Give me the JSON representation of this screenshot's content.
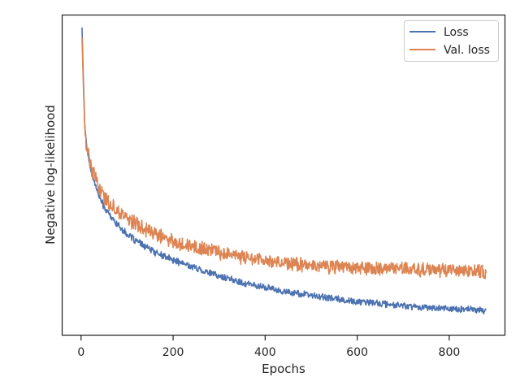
{
  "chart_data": {
    "type": "line",
    "xlabel": "Epochs",
    "ylabel": "Negative log-likelihood",
    "xlim": [
      -42,
      922
    ],
    "ylim": [
      0,
      100
    ],
    "x_ticks": [
      0,
      200,
      400,
      600,
      800
    ],
    "y_ticks_labeled": false,
    "grid": false,
    "legend": {
      "placement": "top-right",
      "entries": [
        "Loss",
        "Val. loss"
      ]
    },
    "series": [
      {
        "name": "Loss",
        "color": "#4c72b0",
        "points": [
          [
            2,
            96
          ],
          [
            5,
            80
          ],
          [
            8,
            66
          ],
          [
            12,
            59
          ],
          [
            18,
            54
          ],
          [
            25,
            50
          ],
          [
            35,
            45
          ],
          [
            50,
            40
          ],
          [
            70,
            36
          ],
          [
            100,
            31.5
          ],
          [
            130,
            28.5
          ],
          [
            160,
            26
          ],
          [
            200,
            23.5
          ],
          [
            250,
            21
          ],
          [
            300,
            18.5
          ],
          [
            350,
            16.5
          ],
          [
            400,
            15
          ],
          [
            450,
            13.5
          ],
          [
            500,
            12.5
          ],
          [
            550,
            11.5
          ],
          [
            600,
            10.5
          ],
          [
            650,
            10
          ],
          [
            700,
            9.3
          ],
          [
            750,
            8.8
          ],
          [
            800,
            8.4
          ],
          [
            850,
            8
          ],
          [
            880,
            7.8
          ]
        ],
        "noise": 1.2
      },
      {
        "name": "Val. loss",
        "color": "#dd8452",
        "points": [
          [
            2,
            93
          ],
          [
            5,
            78
          ],
          [
            8,
            65
          ],
          [
            12,
            59
          ],
          [
            18,
            55
          ],
          [
            25,
            51
          ],
          [
            35,
            47.5
          ],
          [
            50,
            43
          ],
          [
            70,
            40
          ],
          [
            100,
            36.5
          ],
          [
            130,
            34
          ],
          [
            160,
            31.5
          ],
          [
            200,
            29.5
          ],
          [
            250,
            27.5
          ],
          [
            300,
            26
          ],
          [
            350,
            24.5
          ],
          [
            400,
            23.5
          ],
          [
            450,
            22.5
          ],
          [
            500,
            22
          ],
          [
            550,
            21.5
          ],
          [
            600,
            21
          ],
          [
            650,
            21
          ],
          [
            700,
            20.8
          ],
          [
            750,
            20.5
          ],
          [
            800,
            20.3
          ],
          [
            850,
            20.2
          ],
          [
            880,
            20
          ]
        ],
        "noise": 2.6
      }
    ]
  }
}
